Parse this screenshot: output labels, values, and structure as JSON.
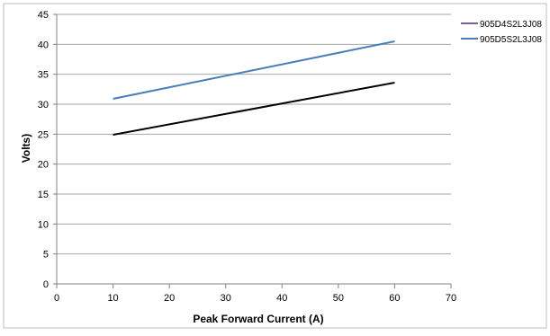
{
  "chart_data": {
    "type": "line",
    "title": "",
    "xlabel": "Peak Forward Current (A)",
    "ylabel": "Volts)",
    "xlim": [
      0,
      70
    ],
    "ylim": [
      0,
      45
    ],
    "x_ticks": [
      0,
      10,
      20,
      30,
      40,
      50,
      60,
      70
    ],
    "y_ticks": [
      0,
      5,
      10,
      15,
      20,
      25,
      30,
      35,
      40,
      45
    ],
    "grid": "horizontal",
    "legend_position": "top-right",
    "series": [
      {
        "name": "905D4S2L3J08",
        "color": "#000000",
        "legend_color": "#7b5ea7",
        "x": [
          10,
          60
        ],
        "y": [
          24.9,
          33.6
        ]
      },
      {
        "name": "905D5S2L3J08",
        "color": "#4a7ebb",
        "legend_color": "#4a7ebb",
        "x": [
          10,
          60
        ],
        "y": [
          30.9,
          40.5
        ]
      }
    ]
  }
}
